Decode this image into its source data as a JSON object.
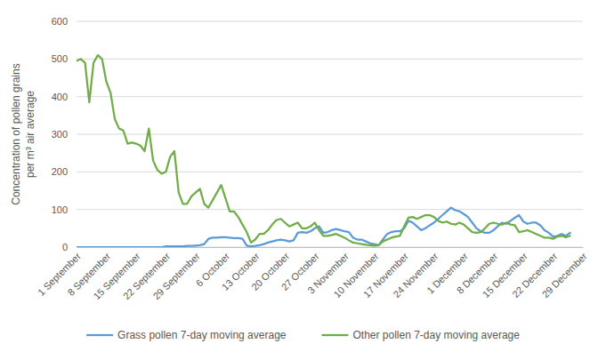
{
  "chart_data": {
    "type": "line",
    "ylabel": [
      "Concentration of pollen grains",
      "per m³ air average"
    ],
    "categories": [
      "1 September",
      null,
      null,
      null,
      null,
      null,
      null,
      "8 September",
      null,
      null,
      null,
      null,
      null,
      null,
      "15 September",
      null,
      null,
      null,
      null,
      null,
      null,
      "22 September",
      null,
      null,
      null,
      null,
      null,
      null,
      "29 September",
      null,
      null,
      null,
      null,
      null,
      null,
      "6 October",
      null,
      null,
      null,
      null,
      null,
      null,
      "13 October",
      null,
      null,
      null,
      null,
      null,
      null,
      "20 October",
      null,
      null,
      null,
      null,
      null,
      null,
      "27 October",
      null,
      null,
      null,
      null,
      null,
      null,
      "3 November",
      null,
      null,
      null,
      null,
      null,
      null,
      "10 November",
      null,
      null,
      null,
      null,
      null,
      null,
      "17 November",
      null,
      null,
      null,
      null,
      null,
      null,
      "24 November",
      null,
      null,
      null,
      null,
      null,
      null,
      "1 December",
      null,
      null,
      null,
      null,
      null,
      null,
      "8 December",
      null,
      null,
      null,
      null,
      null,
      null,
      "15 December",
      null,
      null,
      null,
      null,
      null,
      null,
      "22 December",
      null,
      null,
      null,
      null,
      null,
      null,
      "29 December"
    ],
    "series": [
      {
        "name": "Grass pollen 7-day moving average",
        "color": "#5b9bd5",
        "values": [
          0,
          0,
          0,
          0,
          0,
          0,
          0,
          0,
          0,
          0,
          0,
          0,
          0,
          0,
          0,
          0,
          0,
          0,
          0,
          0,
          0,
          2,
          2,
          2,
          2,
          2,
          3,
          3,
          4,
          5,
          8,
          22,
          25,
          25,
          26,
          26,
          25,
          24,
          24,
          22,
          4,
          2,
          3,
          5,
          8,
          12,
          15,
          18,
          20,
          18,
          15,
          18,
          38,
          40,
          38,
          42,
          50,
          55,
          38,
          40,
          45,
          48,
          45,
          42,
          40,
          25,
          20,
          20,
          15,
          10,
          8,
          5,
          20,
          35,
          40,
          42,
          42,
          50,
          70,
          65,
          55,
          45,
          50,
          58,
          65,
          75,
          85,
          95,
          105,
          98,
          95,
          88,
          80,
          65,
          50,
          42,
          38,
          38,
          45,
          55,
          65,
          62,
          70,
          78,
          85,
          68,
          62,
          65,
          65,
          58,
          45,
          38,
          28,
          30,
          35,
          30,
          38,
          null,
          null,
          null
        ]
      },
      {
        "name": "Other pollen 7-day moving average",
        "color": "#70ad47",
        "values": [
          495,
          500,
          490,
          385,
          490,
          510,
          500,
          440,
          410,
          340,
          315,
          310,
          275,
          278,
          275,
          270,
          255,
          315,
          230,
          205,
          195,
          200,
          240,
          255,
          145,
          115,
          115,
          135,
          145,
          155,
          115,
          105,
          125,
          145,
          165,
          130,
          95,
          95,
          80,
          60,
          40,
          12,
          20,
          35,
          35,
          45,
          60,
          72,
          75,
          65,
          55,
          60,
          65,
          50,
          50,
          55,
          65,
          45,
          30,
          30,
          32,
          35,
          30,
          25,
          18,
          12,
          10,
          8,
          6,
          5,
          4,
          5,
          15,
          20,
          25,
          28,
          30,
          55,
          78,
          80,
          75,
          80,
          85,
          85,
          80,
          70,
          65,
          68,
          62,
          60,
          65,
          60,
          50,
          40,
          38,
          40,
          50,
          62,
          65,
          62,
          60,
          65,
          60,
          58,
          40,
          42,
          45,
          40,
          35,
          30,
          25,
          25,
          22,
          28,
          30,
          26,
          30,
          null,
          null,
          null
        ]
      }
    ],
    "ylim": [
      0,
      600
    ],
    "yticks": [
      0,
      100,
      200,
      300,
      400,
      500,
      600
    ],
    "grid": true,
    "legend": "bottom"
  }
}
